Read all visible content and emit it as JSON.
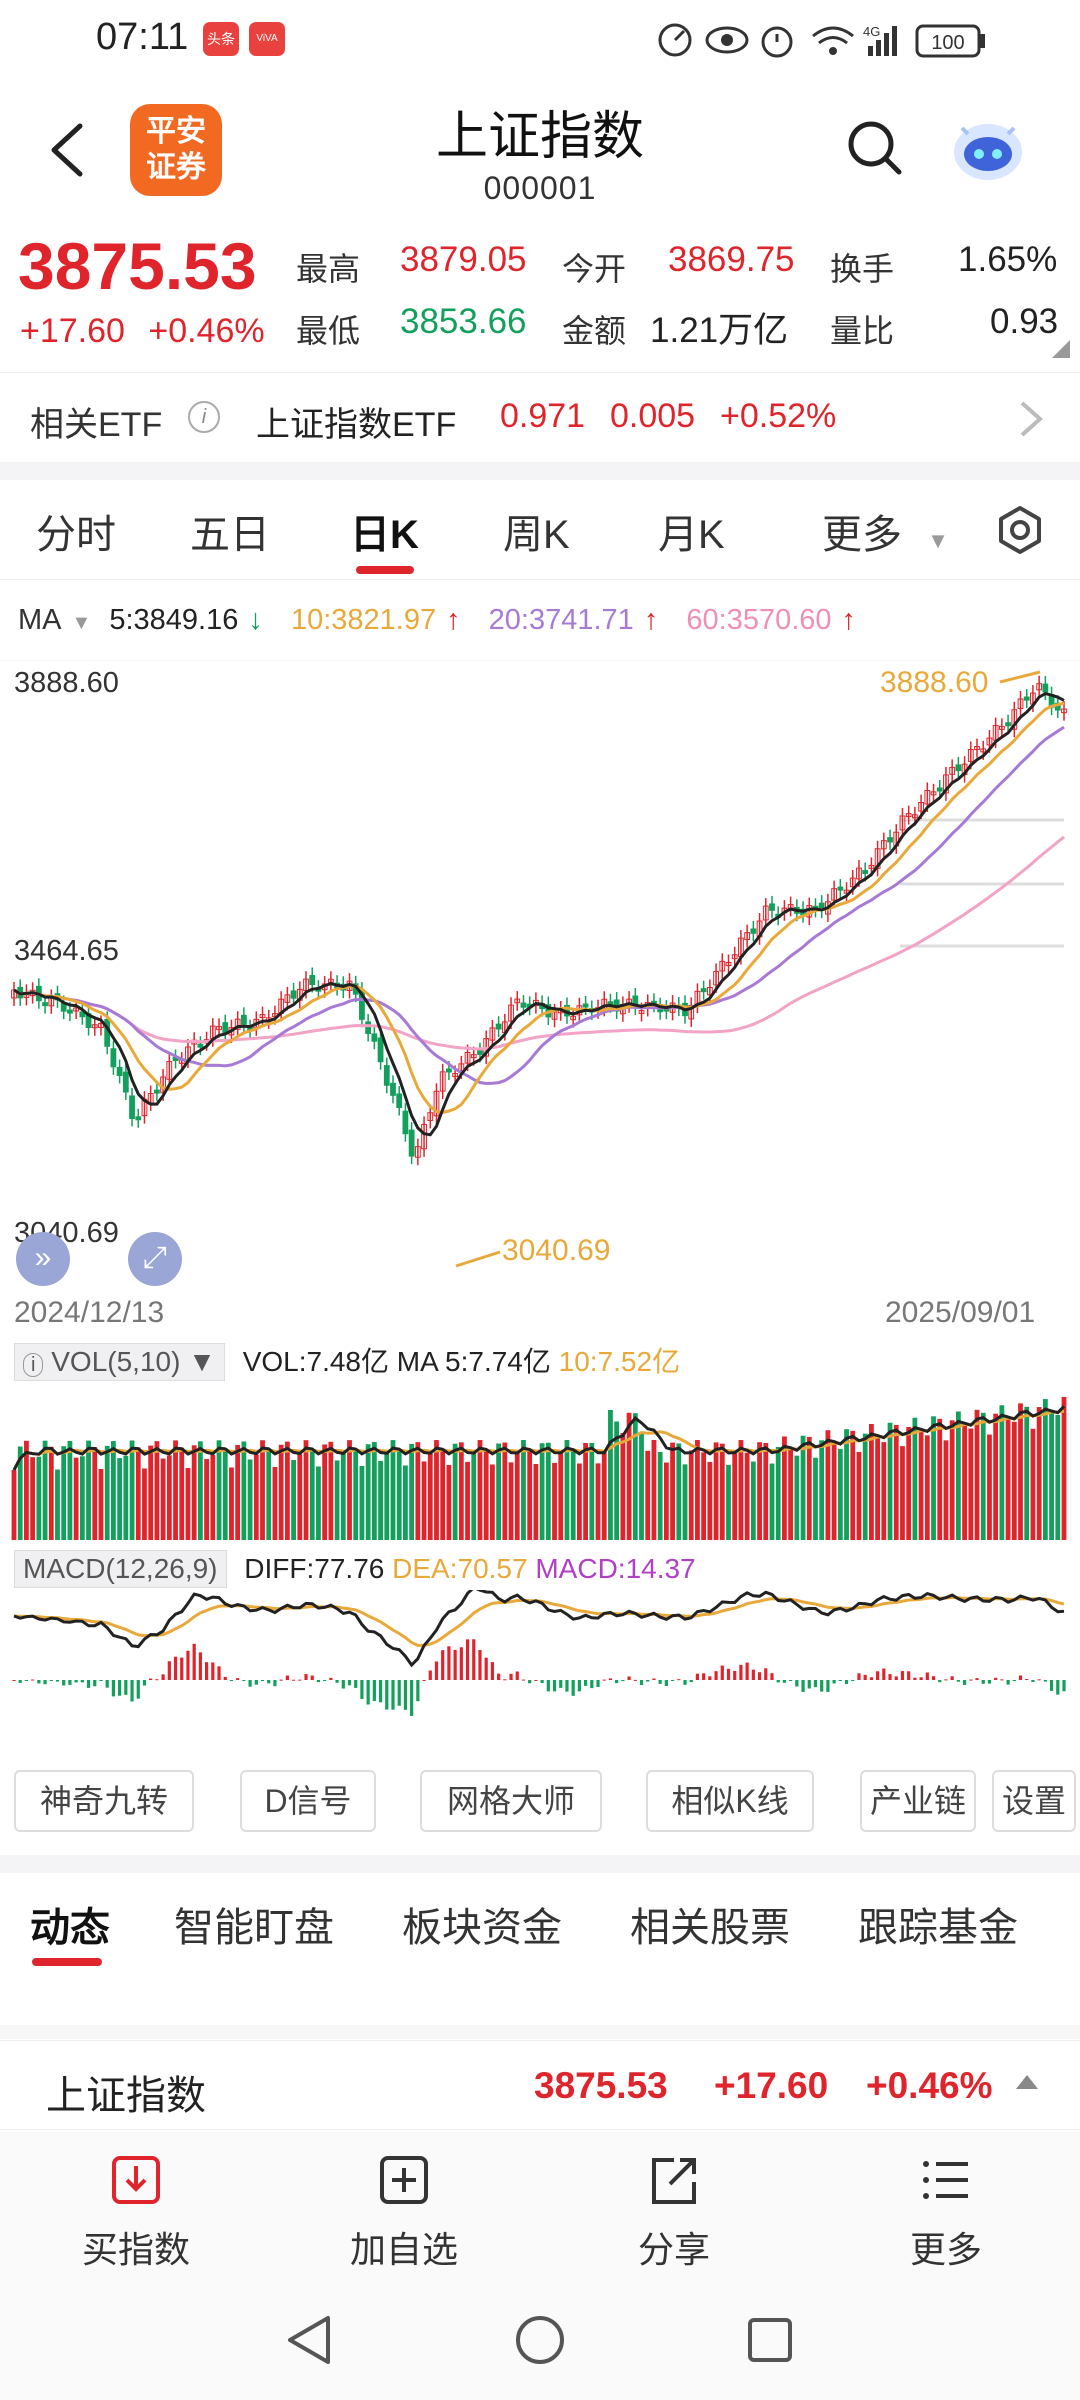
{
  "status_bar": {
    "time": "07:11",
    "app1": "头条",
    "app2": "ViVA",
    "battery": "100",
    "network": "4G"
  },
  "header": {
    "logo_line1": "平安",
    "logo_line2": "证券",
    "title": "上证指数",
    "code": "000001"
  },
  "quote": {
    "price": "3875.53",
    "change": "+17.60",
    "change_pct": "+0.46%",
    "high_label": "最高",
    "high": "3879.05",
    "open_label": "今开",
    "open": "3869.75",
    "turnover_label": "换手",
    "turnover": "1.65%",
    "low_label": "最低",
    "low": "3853.66",
    "amount_label": "金额",
    "amount": "1.21万亿",
    "vol_ratio_label": "量比",
    "vol_ratio": "0.93"
  },
  "etf": {
    "label": "相关ETF",
    "name": "上证指数ETF",
    "price": "0.971",
    "change": "0.005",
    "change_pct": "+0.52%"
  },
  "period_tabs": [
    "分时",
    "五日",
    "日K",
    "周K",
    "月K",
    "更多"
  ],
  "active_period": "日K",
  "ma_legend": {
    "label": "MA",
    "ma5": "5:3849.16",
    "ma10": "10:3821.97",
    "ma20": "20:3741.71",
    "ma60": "60:3570.60"
  },
  "colors": {
    "up": "#e0242c",
    "down": "#12a05c",
    "ma5": "#222222",
    "ma10": "#e8a93a",
    "ma20": "#a77ad6",
    "ma60": "#f2a3c6"
  },
  "chart_data": {
    "type": "candlestick",
    "title": "",
    "y_max_label": "3888.60",
    "y_mid_label": "3464.65",
    "y_min_label": "3040.69",
    "high_annotation": "3888.60",
    "low_annotation": "3040.69",
    "ylim": [
      3040.69,
      3888.6
    ],
    "x_start": "2024/12/13",
    "x_end": "2025/09/01",
    "ma5_last": 3849.16,
    "ma10_last": 3821.97,
    "ma20_last": 3741.71,
    "ma60_last": 3570.6
  },
  "volume": {
    "indicator": "VOL(5,10)",
    "vol": "VOL:7.48亿",
    "ma5": "MA 5:7.74亿",
    "ma10": "10:7.52亿"
  },
  "macd": {
    "indicator": "MACD(12,26,9)",
    "diff": "DIFF:77.76",
    "dea": "DEA:70.57",
    "macd": "MACD:14.37"
  },
  "tools": [
    "神奇九转",
    "D信号",
    "网格大师",
    "相似K线",
    "产业链",
    "设置"
  ],
  "content_tabs": [
    "动态",
    "智能盯盘",
    "板块资金",
    "相关股票",
    "跟踪基金"
  ],
  "bottom_quote": {
    "name": "上证指数",
    "price": "3875.53",
    "change": "+17.60",
    "change_pct": "+0.46%"
  },
  "actions": [
    {
      "label": "买指数",
      "icon": "buy-index-icon"
    },
    {
      "label": "加自选",
      "icon": "add-watchlist-icon"
    },
    {
      "label": "分享",
      "icon": "share-icon"
    },
    {
      "label": "更多",
      "icon": "more-list-icon"
    }
  ]
}
